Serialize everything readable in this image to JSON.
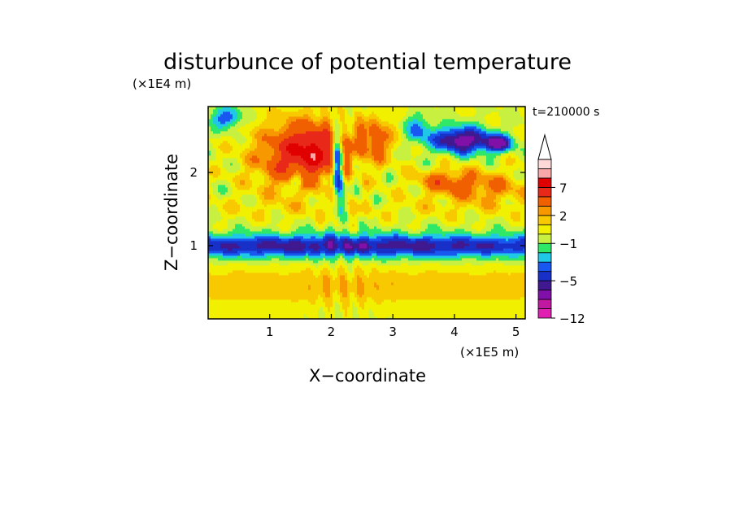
{
  "chart_data": {
    "type": "heatmap",
    "title": "disturbunce of potential temperature",
    "time_label": "t=210000 s",
    "xlabel": "X−coordinate",
    "ylabel": "Z−coordinate",
    "x_unit": "(×1E5 m)",
    "y_unit": "(×1E4 m)",
    "xlim": [
      0,
      5.15
    ],
    "ylim": [
      0,
      2.9
    ],
    "x_ticks": [
      1,
      2,
      3,
      4,
      5
    ],
    "x_tick_labels": [
      "1",
      "2",
      "3",
      "4",
      "5"
    ],
    "y_ticks": [
      1,
      2
    ],
    "y_tick_labels": [
      "1",
      "2"
    ],
    "colorbar": {
      "levels": [
        -12,
        -10,
        -8,
        -6,
        -5,
        -4,
        -3,
        -2,
        -1,
        0,
        1,
        2,
        3,
        5,
        7,
        9,
        11,
        13
      ],
      "colors": [
        "#e020b0",
        "#c018a0",
        "#8010a8",
        "#401890",
        "#1830c8",
        "#1858f0",
        "#20c8e8",
        "#30e868",
        "#c8f040",
        "#f0f000",
        "#f8c800",
        "#f89800",
        "#f06000",
        "#e82818",
        "#e00000",
        "#f8a8a8",
        "#ffd8d8"
      ],
      "tick_labels": [
        "7",
        "2",
        "−1",
        "−5",
        "−12"
      ],
      "tick_values": [
        7,
        2,
        -1,
        -5,
        -12
      ],
      "extend": "max"
    },
    "field_description": "The disturbance is strongly negative (about −5) in a horizontal band near Z=1 (×1E4 m), positive (2 to 7) above it between Z=1.5 and Z=2.7 with the largest values near X=1.8 (×1E5 m), and strongly negative patches near the top at X=3.6–4.8."
  }
}
